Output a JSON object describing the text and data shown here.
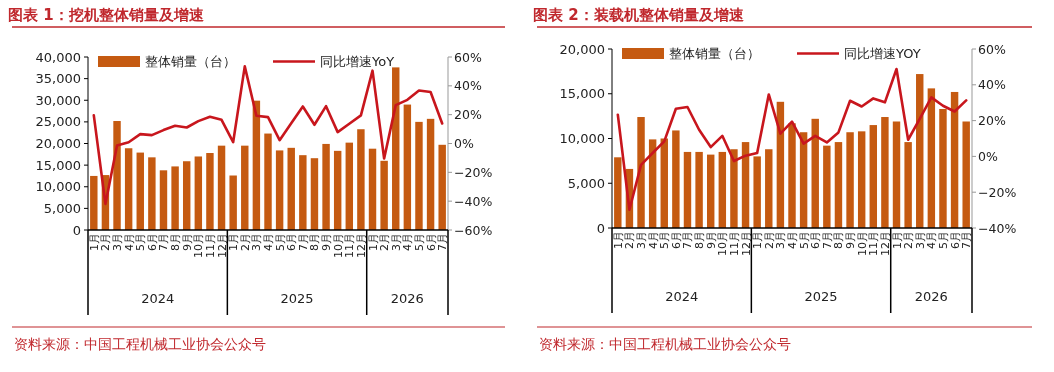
{
  "chart_data": [
    {
      "type": "bar",
      "title": "图表 1：挖机整体销量及增速",
      "categories": [
        "1月",
        "2月",
        "3月",
        "4月",
        "5月",
        "6月",
        "7月",
        "8月",
        "9月",
        "10月",
        "11月",
        "12月",
        "1月",
        "2月",
        "3月",
        "4月",
        "5月",
        "6月",
        "7月",
        "8月",
        "9月",
        "10月",
        "11月",
        "12月",
        "1月",
        "2月",
        "3月",
        "4月",
        "5月",
        "6月",
        "7月"
      ],
      "series": [
        {
          "name": "整体销量（台）",
          "color": "#c55a11",
          "values": [
            12500,
            12700,
            25200,
            18900,
            17900,
            16800,
            13800,
            14700,
            15900,
            17000,
            17800,
            19500,
            12600,
            19500,
            29900,
            22300,
            18400,
            19000,
            17300,
            16600,
            19900,
            18300,
            20200,
            23300,
            18800,
            16000,
            37600,
            29000,
            25000,
            25700,
            19700
          ]
        },
        {
          "name": "同比增速YoY",
          "type": "line",
          "axis": "y2",
          "color": "#c8161d",
          "values": [
            19.5,
            -41.9,
            -1.4,
            0.9,
            6.5,
            5.8,
            9.3,
            12.3,
            11.1,
            15.5,
            18.5,
            16.4,
            0.9,
            53.5,
            19.2,
            18.3,
            2.3,
            14.1,
            25.7,
            13.0,
            25.9,
            7.9,
            13.7,
            19.5,
            50.5,
            -10.4,
            26.6,
            30.3,
            36.8,
            35.7,
            13.9
          ]
        }
      ],
      "ylim": [
        0,
        40000
      ],
      "yticks": [
        0,
        {
          "value": 5000,
          "label": "5,000"
        },
        {
          "value": 10000,
          "label": "10,000"
        },
        {
          "value": 15000,
          "label": "15,000"
        },
        {
          "value": 20000,
          "label": "20,000"
        },
        {
          "value": 25000,
          "label": "25,000"
        },
        {
          "value": 30000,
          "label": "30,000"
        },
        {
          "value": 35000,
          "label": "35,000"
        },
        {
          "value": 40000,
          "label": "40,000"
        }
      ],
      "y2lim": [
        -60,
        60
      ],
      "y2ticks": [
        {
          "value": -60,
          "label": "−60%"
        },
        {
          "value": -40,
          "label": "−40%"
        },
        {
          "value": -20,
          "label": "−20%"
        },
        {
          "value": 0,
          "label": "0%"
        },
        {
          "value": 20,
          "label": "20%"
        },
        {
          "value": 40,
          "label": "40%"
        },
        {
          "value": 60,
          "label": "60%"
        }
      ],
      "legend": "top",
      "grid": false,
      "annotations": [
        "2024",
        "2025",
        "2026",
        "资料来源：中国工程机械工业协会公众号"
      ]
    },
    {
      "type": "bar",
      "title": "图表 2：装载机整体销量及增速",
      "categories": [
        "1月",
        "2月",
        "3月",
        "4月",
        "5月",
        "6月",
        "7月",
        "8月",
        "9月",
        "10月",
        "11月",
        "12月",
        "1月",
        "2月",
        "3月",
        "4月",
        "5月",
        "6月",
        "7月",
        "8月",
        "9月",
        "10月",
        "11月",
        "12月",
        "1月",
        "2月",
        "3月",
        "4月",
        "5月",
        "6月",
        "7月"
      ],
      "series": [
        {
          "name": "整体销量（台）",
          "color": "#c55a11",
          "values": [
            7900,
            6600,
            12400,
            9900,
            10000,
            10900,
            8500,
            8500,
            8200,
            8500,
            8800,
            9600,
            8000,
            8800,
            14100,
            11700,
            10700,
            12200,
            9200,
            9600,
            10700,
            10800,
            11500,
            12400,
            11900,
            9600,
            17200,
            15600,
            13300,
            15200,
            11900
          ]
        },
        {
          "name": "同比增速YOY",
          "type": "line",
          "axis": "y2",
          "color": "#c8161d",
          "values": [
            23.3,
            -29.8,
            -4.7,
            1.9,
            8.4,
            26.6,
            27.6,
            14.9,
            5.2,
            11.5,
            -2.6,
            0.4,
            1.9,
            34.6,
            12.7,
            19.4,
            7.1,
            11.5,
            7.8,
            13.4,
            31.1,
            27.9,
            32.4,
            30.2,
            48.8,
            9.3,
            21.0,
            33.0,
            28.3,
            25.1,
            31.3
          ]
        }
      ],
      "ylim": [
        0,
        20000
      ],
      "yticks": [
        0,
        {
          "value": 5000,
          "label": "5,000"
        },
        {
          "value": 10000,
          "label": "10,000"
        },
        {
          "value": 15000,
          "label": "15,000"
        },
        {
          "value": 20000,
          "label": "20,000"
        }
      ],
      "y2lim": [
        -40,
        60
      ],
      "y2ticks": [
        {
          "value": -40,
          "label": "−40%"
        },
        {
          "value": -20,
          "label": "−20%"
        },
        {
          "value": 0,
          "label": "0%"
        },
        {
          "value": 20,
          "label": "20%"
        },
        {
          "value": 40,
          "label": "40%"
        },
        {
          "value": 60,
          "label": "60%"
        }
      ],
      "legend": "top",
      "grid": false,
      "annotations": [
        "2024",
        "2025",
        "2026",
        "资料来源：中国工程机械工业协会公众号"
      ]
    }
  ]
}
